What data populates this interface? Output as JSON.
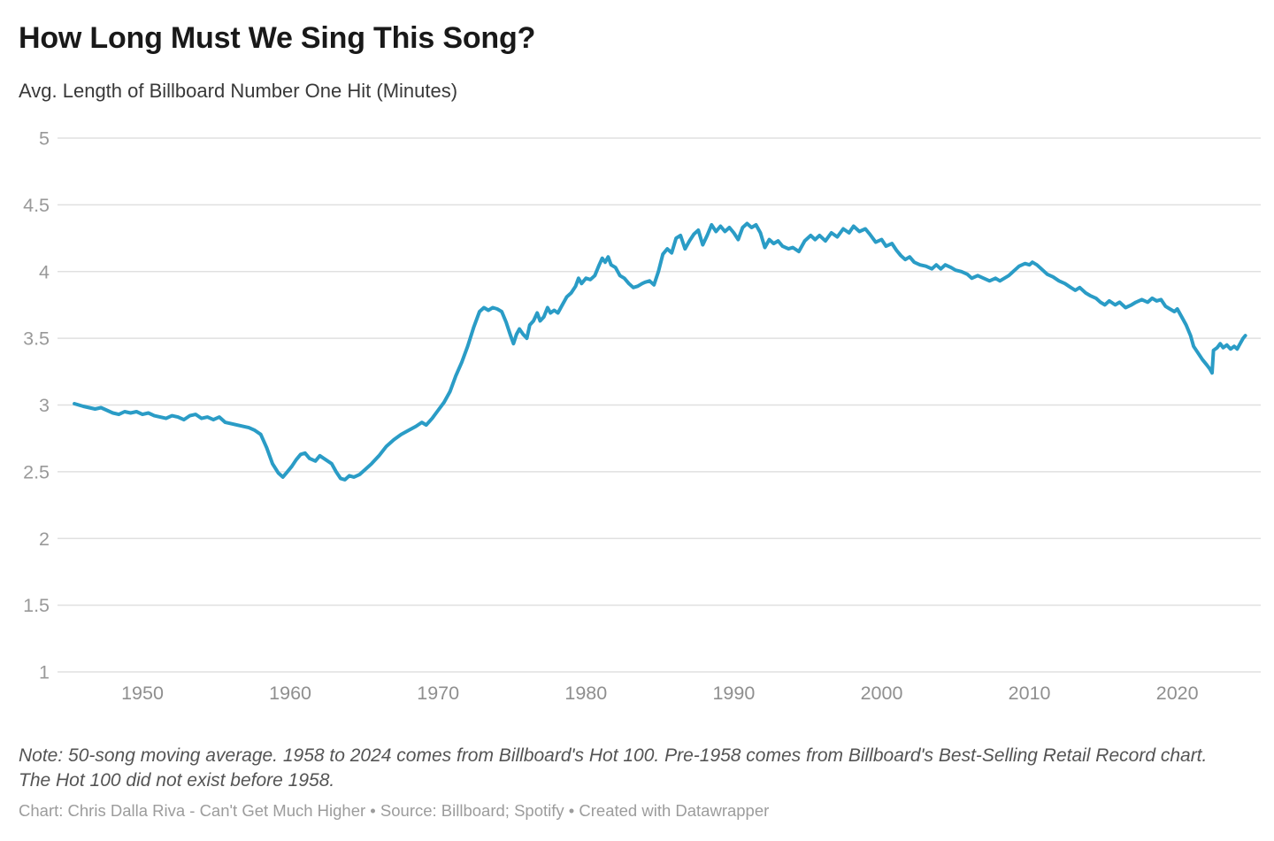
{
  "header": {
    "title": "How Long Must We Sing This Song?",
    "subtitle": "Avg. Length of Billboard Number One Hit (Minutes)"
  },
  "note": {
    "text": "Note: 50-song moving average. 1958 to 2024 comes from Billboard's Hot 100. Pre-1958 comes from Billboard's Best-Selling Retail Record chart. The Hot 100 did not exist before 1958."
  },
  "footer": {
    "byline": "Chart: Chris Dalla Riva - Can't Get Much Higher • Source: Billboard; Spotify • Created with Datawrapper"
  },
  "chart_data": {
    "type": "line",
    "title": "How Long Must We Sing This Song?",
    "subtitle": "Avg. Length of Billboard Number One Hit (Minutes)",
    "series_name": "Avg. length of Billboard number one hit (minutes), 50-song moving average",
    "line_color": "#2a9cc6",
    "grid_color": "#e0e0e0",
    "tick_color": "#999999",
    "legend": "none",
    "grid": "horizontal",
    "x_range": [
      1945.4,
      2024.6
    ],
    "ylim": [
      1,
      5
    ],
    "y_ticks": [
      {
        "value": 5,
        "label": "5"
      },
      {
        "value": 4.5,
        "label": "4.5"
      },
      {
        "value": 4,
        "label": "4"
      },
      {
        "value": 3.5,
        "label": "3.5"
      },
      {
        "value": 3,
        "label": "3"
      },
      {
        "value": 2.5,
        "label": "2.5"
      },
      {
        "value": 2,
        "label": "2"
      },
      {
        "value": 1.5,
        "label": "1.5"
      },
      {
        "value": 1,
        "label": "1"
      }
    ],
    "x_ticks": [
      {
        "value": 1950,
        "label": "1950"
      },
      {
        "value": 1960,
        "label": "1960"
      },
      {
        "value": 1970,
        "label": "1970"
      },
      {
        "value": 1980,
        "label": "1980"
      },
      {
        "value": 1990,
        "label": "1990"
      },
      {
        "value": 2000,
        "label": "2000"
      },
      {
        "value": 2010,
        "label": "2010"
      },
      {
        "value": 2020,
        "label": "2020"
      }
    ],
    "points": [
      [
        1945.4,
        3.01
      ],
      [
        1945.7,
        3.0
      ],
      [
        1946.0,
        2.99
      ],
      [
        1946.4,
        2.98
      ],
      [
        1946.8,
        2.97
      ],
      [
        1947.2,
        2.98
      ],
      [
        1947.6,
        2.96
      ],
      [
        1948.0,
        2.94
      ],
      [
        1948.4,
        2.93
      ],
      [
        1948.8,
        2.95
      ],
      [
        1949.2,
        2.94
      ],
      [
        1949.6,
        2.95
      ],
      [
        1950.0,
        2.93
      ],
      [
        1950.4,
        2.94
      ],
      [
        1950.8,
        2.92
      ],
      [
        1951.2,
        2.91
      ],
      [
        1951.6,
        2.9
      ],
      [
        1952.0,
        2.92
      ],
      [
        1952.4,
        2.91
      ],
      [
        1952.8,
        2.89
      ],
      [
        1953.2,
        2.92
      ],
      [
        1953.6,
        2.93
      ],
      [
        1954.0,
        2.9
      ],
      [
        1954.4,
        2.91
      ],
      [
        1954.8,
        2.89
      ],
      [
        1955.2,
        2.91
      ],
      [
        1955.6,
        2.87
      ],
      [
        1956.0,
        2.86
      ],
      [
        1956.4,
        2.85
      ],
      [
        1956.8,
        2.84
      ],
      [
        1957.2,
        2.83
      ],
      [
        1957.6,
        2.81
      ],
      [
        1958.0,
        2.78
      ],
      [
        1958.4,
        2.68
      ],
      [
        1958.8,
        2.56
      ],
      [
        1959.2,
        2.49
      ],
      [
        1959.5,
        2.46
      ],
      [
        1959.8,
        2.5
      ],
      [
        1960.1,
        2.54
      ],
      [
        1960.4,
        2.59
      ],
      [
        1960.7,
        2.63
      ],
      [
        1961.0,
        2.64
      ],
      [
        1961.3,
        2.6
      ],
      [
        1961.7,
        2.58
      ],
      [
        1962.0,
        2.62
      ],
      [
        1962.4,
        2.59
      ],
      [
        1962.8,
        2.56
      ],
      [
        1963.1,
        2.5
      ],
      [
        1963.4,
        2.45
      ],
      [
        1963.7,
        2.44
      ],
      [
        1964.0,
        2.47
      ],
      [
        1964.3,
        2.46
      ],
      [
        1964.7,
        2.48
      ],
      [
        1965.1,
        2.52
      ],
      [
        1965.5,
        2.56
      ],
      [
        1966.0,
        2.62
      ],
      [
        1966.5,
        2.69
      ],
      [
        1967.0,
        2.74
      ],
      [
        1967.5,
        2.78
      ],
      [
        1968.0,
        2.81
      ],
      [
        1968.5,
        2.84
      ],
      [
        1968.9,
        2.87
      ],
      [
        1969.2,
        2.85
      ],
      [
        1969.6,
        2.9
      ],
      [
        1970.0,
        2.96
      ],
      [
        1970.4,
        3.02
      ],
      [
        1970.8,
        3.1
      ],
      [
        1971.2,
        3.22
      ],
      [
        1971.6,
        3.32
      ],
      [
        1972.0,
        3.44
      ],
      [
        1972.4,
        3.58
      ],
      [
        1972.8,
        3.7
      ],
      [
        1973.1,
        3.73
      ],
      [
        1973.4,
        3.71
      ],
      [
        1973.7,
        3.73
      ],
      [
        1974.0,
        3.72
      ],
      [
        1974.3,
        3.7
      ],
      [
        1974.6,
        3.62
      ],
      [
        1974.9,
        3.52
      ],
      [
        1975.1,
        3.46
      ],
      [
        1975.3,
        3.53
      ],
      [
        1975.5,
        3.57
      ],
      [
        1975.75,
        3.53
      ],
      [
        1976.0,
        3.5
      ],
      [
        1976.2,
        3.6
      ],
      [
        1976.45,
        3.63
      ],
      [
        1976.7,
        3.69
      ],
      [
        1976.9,
        3.63
      ],
      [
        1977.15,
        3.66
      ],
      [
        1977.4,
        3.73
      ],
      [
        1977.6,
        3.69
      ],
      [
        1977.85,
        3.71
      ],
      [
        1978.1,
        3.69
      ],
      [
        1978.4,
        3.75
      ],
      [
        1978.7,
        3.81
      ],
      [
        1979.0,
        3.84
      ],
      [
        1979.3,
        3.89
      ],
      [
        1979.5,
        3.95
      ],
      [
        1979.7,
        3.91
      ],
      [
        1980.0,
        3.95
      ],
      [
        1980.3,
        3.94
      ],
      [
        1980.6,
        3.97
      ],
      [
        1980.9,
        4.05
      ],
      [
        1981.1,
        4.1
      ],
      [
        1981.3,
        4.07
      ],
      [
        1981.5,
        4.11
      ],
      [
        1981.7,
        4.05
      ],
      [
        1982.0,
        4.03
      ],
      [
        1982.3,
        3.97
      ],
      [
        1982.6,
        3.95
      ],
      [
        1982.9,
        3.91
      ],
      [
        1983.2,
        3.88
      ],
      [
        1983.5,
        3.89
      ],
      [
        1983.8,
        3.91
      ],
      [
        1984.0,
        3.92
      ],
      [
        1984.3,
        3.93
      ],
      [
        1984.6,
        3.9
      ],
      [
        1984.9,
        4.0
      ],
      [
        1985.2,
        4.13
      ],
      [
        1985.5,
        4.17
      ],
      [
        1985.8,
        4.14
      ],
      [
        1986.1,
        4.25
      ],
      [
        1986.4,
        4.27
      ],
      [
        1986.7,
        4.17
      ],
      [
        1987.0,
        4.23
      ],
      [
        1987.3,
        4.28
      ],
      [
        1987.6,
        4.31
      ],
      [
        1987.9,
        4.2
      ],
      [
        1988.2,
        4.27
      ],
      [
        1988.5,
        4.35
      ],
      [
        1988.8,
        4.3
      ],
      [
        1989.1,
        4.34
      ],
      [
        1989.4,
        4.3
      ],
      [
        1989.7,
        4.33
      ],
      [
        1990.0,
        4.29
      ],
      [
        1990.3,
        4.24
      ],
      [
        1990.6,
        4.33
      ],
      [
        1990.9,
        4.36
      ],
      [
        1991.2,
        4.33
      ],
      [
        1991.5,
        4.35
      ],
      [
        1991.8,
        4.29
      ],
      [
        1992.1,
        4.18
      ],
      [
        1992.4,
        4.24
      ],
      [
        1992.7,
        4.21
      ],
      [
        1993.0,
        4.23
      ],
      [
        1993.3,
        4.19
      ],
      [
        1993.7,
        4.17
      ],
      [
        1994.0,
        4.18
      ],
      [
        1994.4,
        4.15
      ],
      [
        1994.8,
        4.23
      ],
      [
        1995.2,
        4.27
      ],
      [
        1995.5,
        4.24
      ],
      [
        1995.8,
        4.27
      ],
      [
        1996.2,
        4.23
      ],
      [
        1996.6,
        4.29
      ],
      [
        1997.0,
        4.26
      ],
      [
        1997.4,
        4.32
      ],
      [
        1997.8,
        4.29
      ],
      [
        1998.1,
        4.34
      ],
      [
        1998.5,
        4.3
      ],
      [
        1998.9,
        4.32
      ],
      [
        1999.2,
        4.28
      ],
      [
        1999.6,
        4.22
      ],
      [
        2000.0,
        4.24
      ],
      [
        2000.3,
        4.19
      ],
      [
        2000.7,
        4.21
      ],
      [
        2001.0,
        4.16
      ],
      [
        2001.3,
        4.12
      ],
      [
        2001.6,
        4.09
      ],
      [
        2001.9,
        4.11
      ],
      [
        2002.2,
        4.07
      ],
      [
        2002.6,
        4.05
      ],
      [
        2003.0,
        4.04
      ],
      [
        2003.4,
        4.02
      ],
      [
        2003.7,
        4.05
      ],
      [
        2004.0,
        4.02
      ],
      [
        2004.3,
        4.05
      ],
      [
        2004.7,
        4.03
      ],
      [
        2005.0,
        4.01
      ],
      [
        2005.4,
        4.0
      ],
      [
        2005.8,
        3.98
      ],
      [
        2006.1,
        3.95
      ],
      [
        2006.5,
        3.97
      ],
      [
        2006.9,
        3.95
      ],
      [
        2007.3,
        3.93
      ],
      [
        2007.7,
        3.95
      ],
      [
        2008.0,
        3.93
      ],
      [
        2008.3,
        3.95
      ],
      [
        2008.6,
        3.97
      ],
      [
        2009.0,
        4.01
      ],
      [
        2009.3,
        4.04
      ],
      [
        2009.7,
        4.06
      ],
      [
        2010.0,
        4.05
      ],
      [
        2010.2,
        4.07
      ],
      [
        2010.5,
        4.05
      ],
      [
        2010.8,
        4.02
      ],
      [
        2011.2,
        3.98
      ],
      [
        2011.6,
        3.96
      ],
      [
        2012.0,
        3.93
      ],
      [
        2012.4,
        3.91
      ],
      [
        2012.8,
        3.88
      ],
      [
        2013.1,
        3.86
      ],
      [
        2013.4,
        3.88
      ],
      [
        2013.8,
        3.84
      ],
      [
        2014.1,
        3.82
      ],
      [
        2014.5,
        3.8
      ],
      [
        2014.8,
        3.77
      ],
      [
        2015.1,
        3.75
      ],
      [
        2015.4,
        3.78
      ],
      [
        2015.8,
        3.75
      ],
      [
        2016.1,
        3.77
      ],
      [
        2016.5,
        3.73
      ],
      [
        2016.9,
        3.75
      ],
      [
        2017.2,
        3.77
      ],
      [
        2017.6,
        3.79
      ],
      [
        2018.0,
        3.77
      ],
      [
        2018.3,
        3.8
      ],
      [
        2018.6,
        3.78
      ],
      [
        2018.9,
        3.79
      ],
      [
        2019.2,
        3.74
      ],
      [
        2019.5,
        3.72
      ],
      [
        2019.8,
        3.7
      ],
      [
        2020.0,
        3.72
      ],
      [
        2020.3,
        3.66
      ],
      [
        2020.6,
        3.6
      ],
      [
        2020.9,
        3.52
      ],
      [
        2021.1,
        3.44
      ],
      [
        2021.4,
        3.39
      ],
      [
        2021.7,
        3.34
      ],
      [
        2022.0,
        3.3
      ],
      [
        2022.2,
        3.27
      ],
      [
        2022.35,
        3.24
      ],
      [
        2022.45,
        3.41
      ],
      [
        2022.7,
        3.43
      ],
      [
        2022.9,
        3.46
      ],
      [
        2023.1,
        3.43
      ],
      [
        2023.35,
        3.45
      ],
      [
        2023.6,
        3.42
      ],
      [
        2023.85,
        3.44
      ],
      [
        2024.05,
        3.42
      ],
      [
        2024.25,
        3.46
      ],
      [
        2024.45,
        3.5
      ],
      [
        2024.6,
        3.52
      ]
    ]
  }
}
